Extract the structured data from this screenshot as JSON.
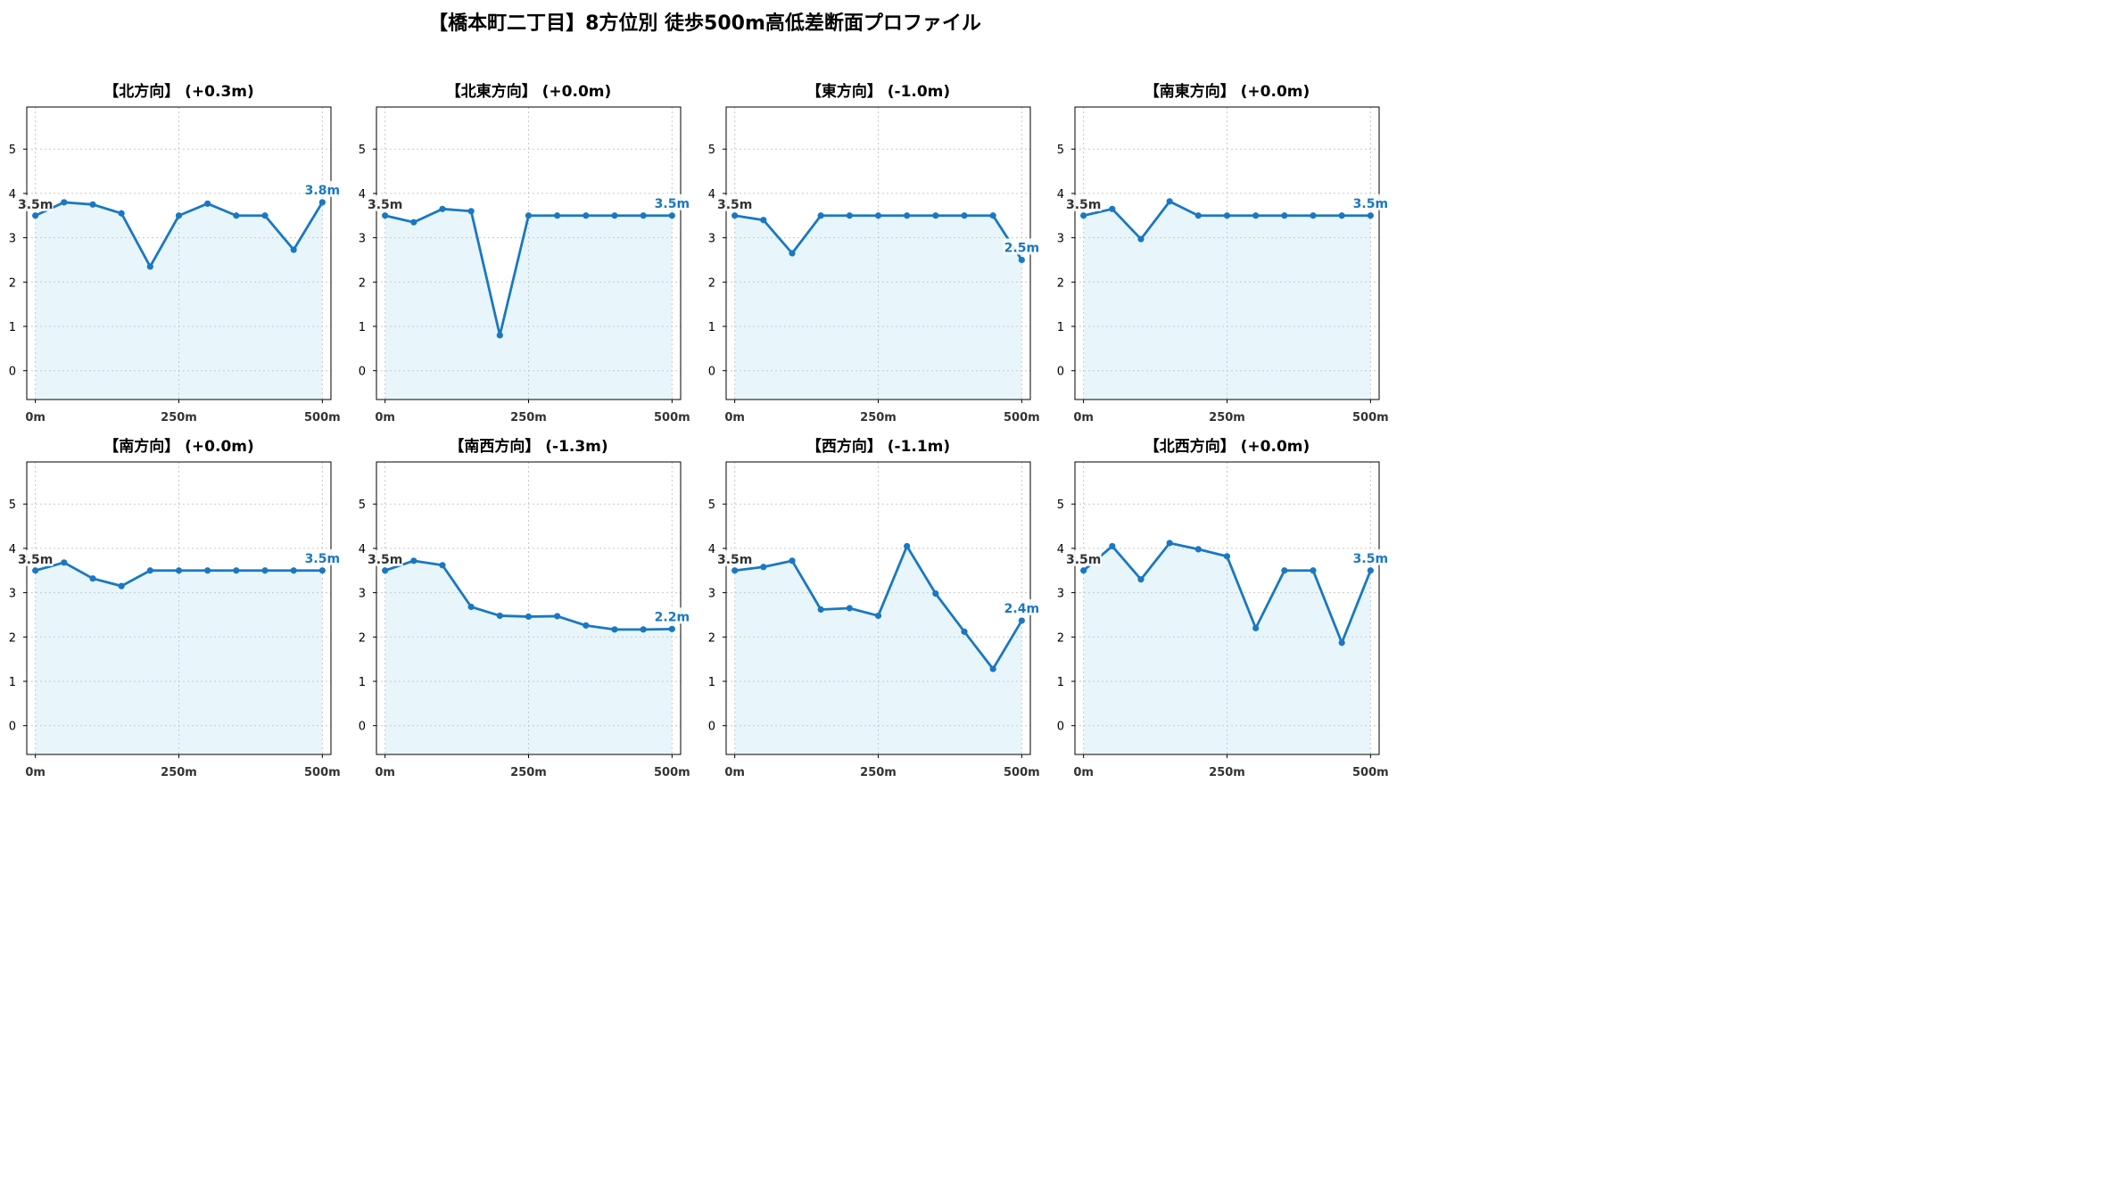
{
  "title": "【橋本町二丁目】8方位別 徒歩500m高低差断面プロファイル",
  "colors": {
    "line": "#1a78c2",
    "fill": "#e8f6fc",
    "grid": "#c8c8c8",
    "end_label": "#1a78c2",
    "start_label": "#333333"
  },
  "chart_data": [
    {
      "type": "area",
      "title": "【北方向】 (+0.3m)",
      "x": [
        0,
        50,
        100,
        150,
        200,
        250,
        300,
        350,
        400,
        450,
        500
      ],
      "xticks": [
        "0m",
        "250m",
        "500m"
      ],
      "yticks": [
        0,
        1,
        2,
        3,
        4,
        5
      ],
      "ylim": [
        -0.65,
        5.95
      ],
      "xlim": [
        -15,
        515
      ],
      "values": [
        3.5,
        3.8,
        3.75,
        3.55,
        2.35,
        3.5,
        3.77,
        3.5,
        3.5,
        2.73,
        3.8
      ],
      "start_label": "3.5m",
      "end_label": "3.8m"
    },
    {
      "type": "area",
      "title": "【北東方向】 (+0.0m)",
      "x": [
        0,
        50,
        100,
        150,
        200,
        250,
        300,
        350,
        400,
        450,
        500
      ],
      "xticks": [
        "0m",
        "250m",
        "500m"
      ],
      "yticks": [
        0,
        1,
        2,
        3,
        4,
        5
      ],
      "ylim": [
        -0.65,
        5.95
      ],
      "xlim": [
        -15,
        515
      ],
      "values": [
        3.5,
        3.35,
        3.65,
        3.6,
        0.8,
        3.5,
        3.5,
        3.5,
        3.5,
        3.5,
        3.5
      ],
      "start_label": "3.5m",
      "end_label": "3.5m"
    },
    {
      "type": "area",
      "title": "【東方向】 (-1.0m)",
      "x": [
        0,
        50,
        100,
        150,
        200,
        250,
        300,
        350,
        400,
        450,
        500
      ],
      "xticks": [
        "0m",
        "250m",
        "500m"
      ],
      "yticks": [
        0,
        1,
        2,
        3,
        4,
        5
      ],
      "ylim": [
        -0.65,
        5.95
      ],
      "xlim": [
        -15,
        515
      ],
      "values": [
        3.5,
        3.4,
        2.65,
        3.5,
        3.5,
        3.5,
        3.5,
        3.5,
        3.5,
        3.5,
        2.5
      ],
      "start_label": "3.5m",
      "end_label": "2.5m"
    },
    {
      "type": "area",
      "title": "【南東方向】 (+0.0m)",
      "x": [
        0,
        50,
        100,
        150,
        200,
        250,
        300,
        350,
        400,
        450,
        500
      ],
      "xticks": [
        "0m",
        "250m",
        "500m"
      ],
      "yticks": [
        0,
        1,
        2,
        3,
        4,
        5
      ],
      "ylim": [
        -0.65,
        5.95
      ],
      "xlim": [
        -15,
        515
      ],
      "values": [
        3.5,
        3.65,
        2.97,
        3.82,
        3.5,
        3.5,
        3.5,
        3.5,
        3.5,
        3.5,
        3.5
      ],
      "start_label": "3.5m",
      "end_label": "3.5m"
    },
    {
      "type": "area",
      "title": "【南方向】 (+0.0m)",
      "x": [
        0,
        50,
        100,
        150,
        200,
        250,
        300,
        350,
        400,
        450,
        500
      ],
      "xticks": [
        "0m",
        "250m",
        "500m"
      ],
      "yticks": [
        0,
        1,
        2,
        3,
        4,
        5
      ],
      "ylim": [
        -0.65,
        5.95
      ],
      "xlim": [
        -15,
        515
      ],
      "values": [
        3.5,
        3.68,
        3.32,
        3.15,
        3.5,
        3.5,
        3.5,
        3.5,
        3.5,
        3.5,
        3.5
      ],
      "start_label": "3.5m",
      "end_label": "3.5m"
    },
    {
      "type": "area",
      "title": "【南西方向】 (-1.3m)",
      "x": [
        0,
        50,
        100,
        150,
        200,
        250,
        300,
        350,
        400,
        450,
        500
      ],
      "xticks": [
        "0m",
        "250m",
        "500m"
      ],
      "yticks": [
        0,
        1,
        2,
        3,
        4,
        5
      ],
      "ylim": [
        -0.65,
        5.95
      ],
      "xlim": [
        -15,
        515
      ],
      "values": [
        3.5,
        3.72,
        3.62,
        2.68,
        2.48,
        2.46,
        2.47,
        2.26,
        2.17,
        2.17,
        2.18
      ],
      "start_label": "3.5m",
      "end_label": "2.2m"
    },
    {
      "type": "area",
      "title": "【西方向】 (-1.1m)",
      "x": [
        0,
        50,
        100,
        150,
        200,
        250,
        300,
        350,
        400,
        450,
        500
      ],
      "xticks": [
        "0m",
        "250m",
        "500m"
      ],
      "yticks": [
        0,
        1,
        2,
        3,
        4,
        5
      ],
      "ylim": [
        -0.65,
        5.95
      ],
      "xlim": [
        -15,
        515
      ],
      "values": [
        3.5,
        3.58,
        3.72,
        2.62,
        2.65,
        2.48,
        4.05,
        2.98,
        2.12,
        1.28,
        2.37
      ],
      "start_label": "3.5m",
      "end_label": "2.4m"
    },
    {
      "type": "area",
      "title": "【北西方向】 (+0.0m)",
      "x": [
        0,
        50,
        100,
        150,
        200,
        250,
        300,
        350,
        400,
        450,
        500
      ],
      "xticks": [
        "0m",
        "250m",
        "500m"
      ],
      "yticks": [
        0,
        1,
        2,
        3,
        4,
        5
      ],
      "ylim": [
        -0.65,
        5.95
      ],
      "xlim": [
        -15,
        515
      ],
      "values": [
        3.5,
        4.05,
        3.3,
        4.12,
        3.98,
        3.82,
        2.2,
        3.5,
        3.5,
        1.87,
        3.5
      ],
      "start_label": "3.5m",
      "end_label": "3.5m"
    }
  ]
}
